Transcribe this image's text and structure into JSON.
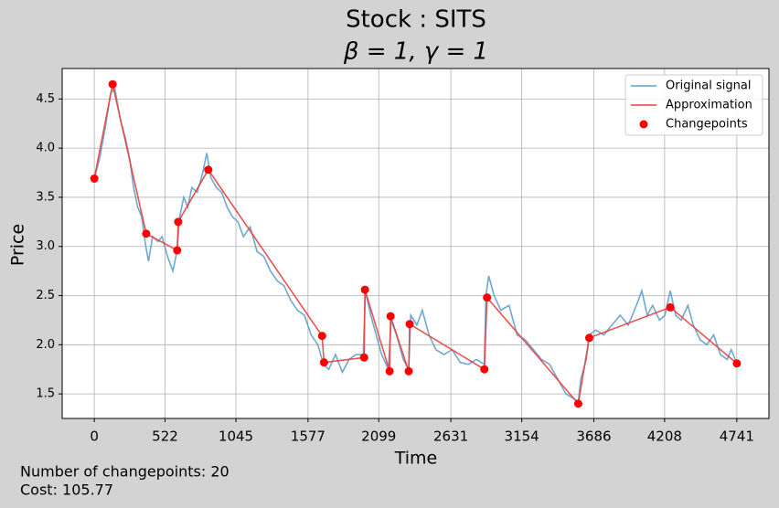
{
  "chart_data": {
    "type": "line",
    "title": "Stock : SITS",
    "subtitle": "β = 1, γ = 1",
    "x_label": "Time",
    "y_label": "Price",
    "annotations": [
      "Number of changepoints: 20",
      "Cost: 105.77"
    ],
    "xlim": [
      -237,
      4978
    ],
    "ylim": [
      1.25,
      4.81
    ],
    "xticks": [
      0,
      522,
      1045,
      1577,
      2099,
      2631,
      3154,
      3686,
      4208,
      4741
    ],
    "yticks": [
      1.5,
      {
        "value": 2,
        "label": "2.0"
      },
      2.5,
      {
        "value": 3,
        "label": "3.0"
      },
      3.5,
      {
        "value": 4,
        "label": "4.0"
      },
      4.5
    ],
    "grid": true,
    "legend": "upper right",
    "series": [
      {
        "name": "Original signal",
        "color": "#5f9fcc",
        "style": "line",
        "x": [
          0,
          40,
          80,
          120,
          150,
          190,
          230,
          260,
          290,
          320,
          350,
          380,
          400,
          430,
          470,
          500,
          540,
          580,
          610,
          630,
          660,
          690,
          720,
          760,
          800,
          830,
          860,
          900,
          940,
          980,
          1020,
          1060,
          1100,
          1150,
          1200,
          1250,
          1300,
          1350,
          1400,
          1450,
          1500,
          1550,
          1600,
          1650,
          1690,
          1730,
          1780,
          1830,
          1880,
          1930,
          1985,
          2000,
          2040,
          2080,
          2120,
          2170,
          2190,
          2230,
          2280,
          2320,
          2335,
          2380,
          2420,
          2470,
          2520,
          2580,
          2640,
          2700,
          2760,
          2820,
          2878,
          2890,
          2910,
          2950,
          3000,
          3060,
          3120,
          3180,
          3240,
          3300,
          3360,
          3420,
          3480,
          3540,
          3571,
          3590,
          3630,
          3652,
          3700,
          3760,
          3820,
          3880,
          3940,
          4000,
          4040,
          4080,
          4120,
          4170,
          4210,
          4250,
          4290,
          4330,
          4380,
          4420,
          4470,
          4520,
          4570,
          4620,
          4670,
          4700,
          4741
        ],
        "values": [
          3.69,
          3.9,
          4.2,
          4.55,
          4.62,
          4.3,
          4.1,
          3.9,
          3.6,
          3.4,
          3.3,
          3.0,
          2.85,
          3.1,
          3.05,
          3.1,
          2.9,
          2.75,
          2.95,
          3.3,
          3.5,
          3.4,
          3.6,
          3.55,
          3.75,
          3.95,
          3.7,
          3.6,
          3.55,
          3.4,
          3.3,
          3.25,
          3.1,
          3.2,
          2.95,
          2.9,
          2.75,
          2.65,
          2.6,
          2.45,
          2.35,
          2.3,
          2.1,
          2.0,
          1.8,
          1.75,
          1.9,
          1.72,
          1.85,
          1.9,
          1.9,
          2.55,
          2.3,
          2.1,
          1.9,
          1.75,
          2.25,
          2.1,
          1.85,
          1.75,
          2.3,
          2.2,
          2.35,
          2.1,
          1.95,
          1.9,
          1.95,
          1.82,
          1.8,
          1.85,
          1.8,
          2.5,
          2.7,
          2.5,
          2.35,
          2.4,
          2.1,
          2.05,
          1.95,
          1.85,
          1.8,
          1.65,
          1.5,
          1.45,
          1.42,
          1.65,
          1.85,
          2.1,
          2.15,
          2.1,
          2.2,
          2.3,
          2.2,
          2.4,
          2.55,
          2.3,
          2.4,
          2.25,
          2.3,
          2.55,
          2.3,
          2.25,
          2.4,
          2.2,
          2.05,
          2.0,
          2.1,
          1.9,
          1.85,
          1.95,
          1.81
        ]
      },
      {
        "name": "Approximation",
        "color": "#e8403f",
        "style": "line",
        "x": [
          0,
          135,
          383,
          612,
          619,
          841,
          1681,
          1695,
          1991,
          1997,
          2179,
          2186,
          2320,
          2327,
          2878,
          2898,
          3571,
          3652,
          4250,
          4741
        ],
        "values": [
          3.69,
          4.65,
          3.13,
          2.96,
          3.25,
          3.78,
          2.09,
          1.82,
          1.87,
          2.56,
          1.73,
          2.29,
          1.73,
          2.21,
          1.75,
          2.48,
          1.4,
          2.07,
          2.38,
          1.81
        ]
      },
      {
        "name": "Changepoints",
        "color": "#ff0000",
        "style": "marker",
        "x": [
          0,
          135,
          383,
          612,
          619,
          841,
          1681,
          1695,
          1991,
          1997,
          2179,
          2186,
          2320,
          2327,
          2878,
          2898,
          3571,
          3652,
          4250,
          4741
        ],
        "values": [
          3.69,
          4.65,
          3.13,
          2.96,
          3.25,
          3.78,
          2.09,
          1.82,
          1.87,
          2.56,
          1.73,
          2.29,
          1.73,
          2.21,
          1.75,
          2.48,
          1.4,
          2.07,
          2.38,
          1.81
        ]
      }
    ]
  }
}
